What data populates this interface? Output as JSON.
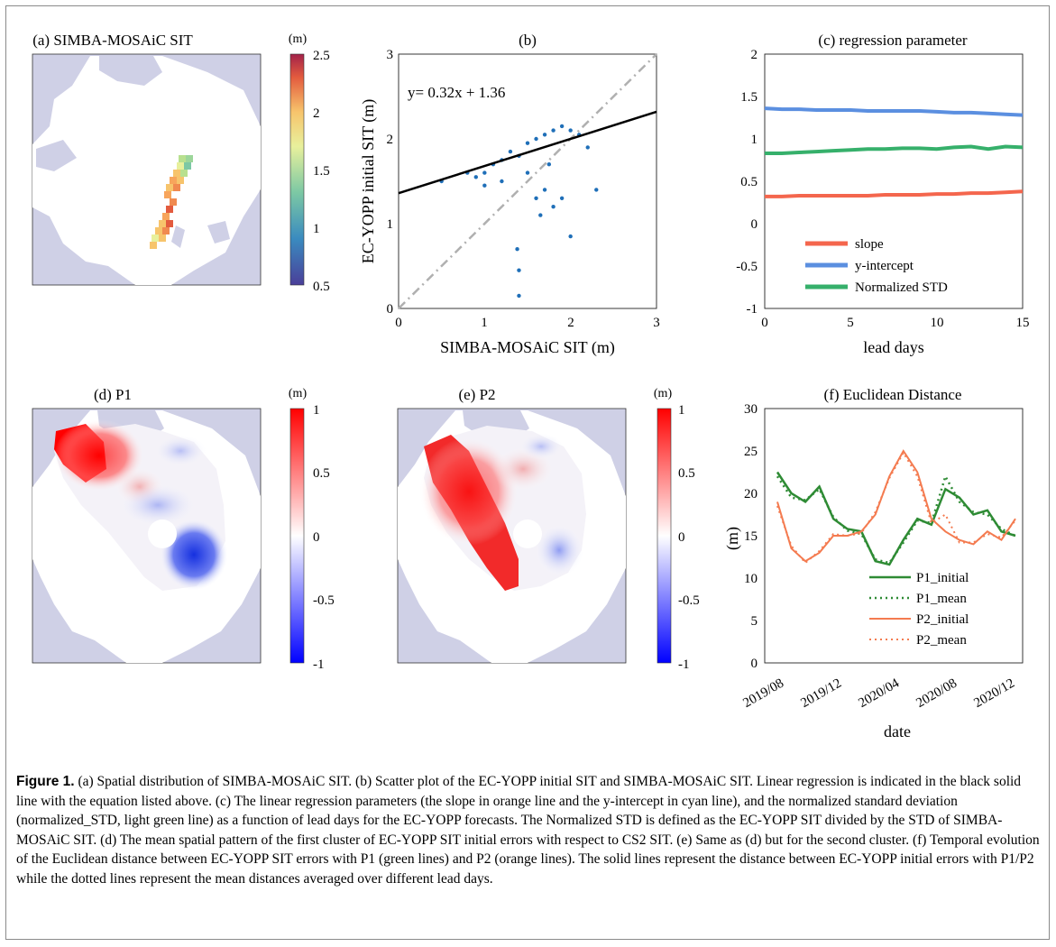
{
  "colors": {
    "land": "#cfd0e6",
    "ocean": "#ffffff",
    "scatter": "#1f6fb8",
    "slope": "#f4664d",
    "intercept": "#5b8fe0",
    "nstd": "#36b06b",
    "p1": "#2e8b34",
    "p2": "#f47b50"
  },
  "panels": {
    "a": {
      "title": "(a) SIMBA-MOSAiC SIT",
      "unit": "(m)",
      "ticks": [
        "2.5",
        "2",
        "1.5",
        "1",
        "0.5"
      ]
    },
    "b": {
      "title": "(b)",
      "equation": "y= 0.32x + 1.36",
      "xlabel": "SIMBA-MOSAiC SIT (m)",
      "ylabel": "EC-YOPP initial SIT (m)",
      "xticks": [
        "0",
        "1",
        "2",
        "3"
      ],
      "yticks": [
        "0",
        "1",
        "2",
        "3"
      ]
    },
    "c": {
      "title": "(c) regression parameter",
      "xlabel": "lead days",
      "xticks": [
        "0",
        "5",
        "10",
        "15"
      ],
      "yticks": [
        "2",
        "1.5",
        "1",
        "0.5",
        "0",
        "-0.5",
        "-1"
      ],
      "legend": [
        "slope",
        "y-intercept",
        "Normalized STD"
      ]
    },
    "d": {
      "title": "(d) P1",
      "unit": "(m)",
      "ticks": [
        "1",
        "0.5",
        "0",
        "-0.5",
        "-1"
      ]
    },
    "e": {
      "title": "(e) P2",
      "unit": "(m)",
      "ticks": [
        "1",
        "0.5",
        "0",
        "-0.5",
        "-1"
      ]
    },
    "f": {
      "title": "(f) Euclidean Distance",
      "xlabel": "date",
      "ylabel": "(m)",
      "xticks": [
        "2019/08",
        "2019/12",
        "2020/04",
        "2020/08",
        "2020/12"
      ],
      "yticks": [
        "30",
        "25",
        "20",
        "15",
        "10",
        "5",
        "0"
      ],
      "legend": [
        "P1_initial",
        "P1_mean",
        "P2_initial",
        "P2_mean"
      ]
    }
  },
  "caption": {
    "label": "Figure 1.",
    "text": " (a) Spatial distribution of SIMBA-MOSAiC SIT. (b) Scatter plot of the EC-YOPP initial SIT and SIMBA-MOSAiC SIT. Linear regression is indicated in the black solid line with the equation listed above. (c) The linear regression parameters (the slope in orange line and the y-intercept in cyan line), and the normalized standard deviation (normalized_STD, light green line) as a function of lead days for the EC-YOPP forecasts. The Normalized STD is defined as the EC-YOPP SIT divided by the STD of SIMBA-MOSAiC SIT. (d) The mean spatial pattern of the first cluster of EC-YOPP SIT initial errors with respect to CS2 SIT. (e) Same as (d) but for the second cluster. (f) Temporal evolution of the Euclidean distance between EC-YOPP SIT errors with P1 (green lines) and P2 (orange lines). The solid lines represent the distance between EC-YOPP initial errors with P1/P2 while the dotted lines represent the mean distances averaged over different lead days."
  },
  "chart_data": [
    {
      "type": "scatter",
      "title": "(b)",
      "xlabel": "SIMBA-MOSAiC SIT (m)",
      "ylabel": "EC-YOPP initial SIT (m)",
      "xlim": [
        0,
        3
      ],
      "ylim": [
        0,
        3
      ],
      "regression": {
        "slope": 0.32,
        "intercept": 1.36,
        "label": "y= 0.32x + 1.36"
      },
      "reference_line": "y = x",
      "series": [
        {
          "values": [
            [
              0.5,
              1.5
            ],
            [
              0.8,
              1.6
            ],
            [
              0.9,
              1.55
            ],
            [
              1.0,
              1.6
            ],
            [
              1.1,
              1.7
            ],
            [
              1.2,
              1.75
            ],
            [
              1.3,
              1.85
            ],
            [
              1.4,
              1.8
            ],
            [
              1.5,
              1.95
            ],
            [
              1.6,
              2.0
            ],
            [
              1.7,
              2.05
            ],
            [
              1.8,
              2.1
            ],
            [
              1.9,
              2.15
            ],
            [
              2.0,
              2.1
            ],
            [
              2.1,
              2.05
            ],
            [
              2.2,
              1.9
            ],
            [
              1.7,
              1.4
            ],
            [
              1.8,
              1.2
            ],
            [
              1.9,
              1.3
            ],
            [
              1.65,
              1.1
            ],
            [
              2.0,
              0.85
            ],
            [
              1.38,
              0.7
            ],
            [
              1.4,
              0.45
            ],
            [
              1.4,
              0.15
            ],
            [
              2.3,
              1.4
            ],
            [
              1.2,
              1.5
            ],
            [
              1.0,
              1.45
            ],
            [
              1.5,
              1.6
            ],
            [
              1.75,
              1.7
            ],
            [
              1.6,
              1.3
            ]
          ]
        }
      ]
    },
    {
      "type": "line",
      "title": "(c) regression parameter",
      "xlabel": "lead days",
      "ylabel": "",
      "xlim": [
        0,
        15
      ],
      "ylim": [
        -1,
        2
      ],
      "x": [
        0,
        1,
        2,
        3,
        4,
        5,
        6,
        7,
        8,
        9,
        10,
        11,
        12,
        13,
        14,
        15
      ],
      "series": [
        {
          "name": "slope",
          "values": [
            0.32,
            0.32,
            0.33,
            0.33,
            0.33,
            0.33,
            0.33,
            0.34,
            0.34,
            0.34,
            0.35,
            0.35,
            0.36,
            0.36,
            0.37,
            0.38
          ]
        },
        {
          "name": "y-intercept",
          "values": [
            1.36,
            1.35,
            1.35,
            1.34,
            1.34,
            1.34,
            1.33,
            1.33,
            1.33,
            1.33,
            1.32,
            1.31,
            1.31,
            1.3,
            1.29,
            1.28
          ]
        },
        {
          "name": "Normalized STD",
          "values": [
            0.83,
            0.83,
            0.84,
            0.85,
            0.86,
            0.87,
            0.88,
            0.88,
            0.89,
            0.89,
            0.88,
            0.9,
            0.91,
            0.88,
            0.91,
            0.9
          ]
        }
      ]
    },
    {
      "type": "line",
      "title": "(f) Euclidean Distance",
      "xlabel": "date",
      "ylabel": "(m)",
      "ylim": [
        0,
        30
      ],
      "x": [
        "2019/08",
        "2019/09",
        "2019/10",
        "2019/11",
        "2019/12",
        "2020/01",
        "2020/02",
        "2020/03",
        "2020/04",
        "2020/05",
        "2020/06",
        "2020/07",
        "2020/08",
        "2020/09",
        "2020/10",
        "2020/11",
        "2020/12",
        "2021/01"
      ],
      "series": [
        {
          "name": "P1_initial",
          "values": [
            22.5,
            20.0,
            19.0,
            20.8,
            17.0,
            15.8,
            15.5,
            12.0,
            11.6,
            14.5,
            17.0,
            16.3,
            20.5,
            19.5,
            17.5,
            18.0,
            15.5,
            15.0
          ]
        },
        {
          "name": "P1_mean",
          "values": [
            22.0,
            19.5,
            19.2,
            20.5,
            17.2,
            15.6,
            15.2,
            12.2,
            11.8,
            14.2,
            16.8,
            16.5,
            22.0,
            19.0,
            17.8,
            17.5,
            15.8,
            15.0
          ]
        },
        {
          "name": "P2_initial",
          "values": [
            19.0,
            13.5,
            12.0,
            13.0,
            15.0,
            15.0,
            15.5,
            17.5,
            22.0,
            25.0,
            22.5,
            17.0,
            15.5,
            14.5,
            14.0,
            15.5,
            14.5,
            17.0
          ]
        },
        {
          "name": "P2_mean",
          "values": [
            18.5,
            13.8,
            11.8,
            13.2,
            15.2,
            15.0,
            15.3,
            17.8,
            21.8,
            24.8,
            22.0,
            16.5,
            17.5,
            14.2,
            14.2,
            15.2,
            14.8,
            16.8
          ]
        }
      ]
    }
  ]
}
